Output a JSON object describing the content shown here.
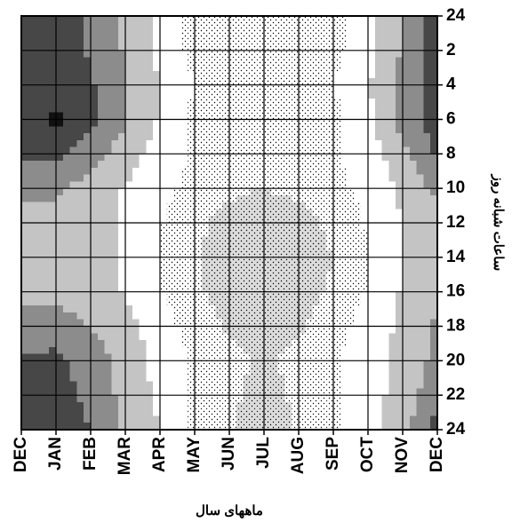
{
  "chart_data": {
    "type": "contour",
    "x_title": "ماههای سال",
    "y_title": "ساعات شبانه روز",
    "categories": [
      "DEC",
      "JAN",
      "FEB",
      "MAR",
      "APR",
      "MAY",
      "JUN",
      "JUL",
      "AUG",
      "SEP",
      "OCT",
      "NOV",
      "DEC"
    ],
    "ylim": [
      0,
      24
    ],
    "y_inverted": true,
    "yticks": [
      {
        "value": 0,
        "label": "24"
      },
      2,
      4,
      6,
      8,
      10,
      12,
      14,
      16,
      18,
      20,
      22,
      24
    ],
    "grid": true,
    "band_colors": [
      "#111111",
      "#474747",
      "#8c8c8c",
      "#c4c4c4",
      "#ffffff",
      "#ffffff",
      "#dcdcdc"
    ],
    "band_dotted": [
      false,
      false,
      false,
      false,
      false,
      true,
      true
    ],
    "z": [
      [
        1,
        1,
        1.6,
        2.6,
        3.8,
        5,
        5.3,
        5.3,
        5.3,
        5,
        3.8,
        2.4,
        1
      ],
      [
        1,
        1,
        1.6,
        2.6,
        3.8,
        4.8,
        5.2,
        5.2,
        5.2,
        4.8,
        3.8,
        2.4,
        1
      ],
      [
        1,
        0.9,
        1.4,
        2.5,
        3.5,
        4.5,
        5.1,
        5.2,
        5.1,
        4.5,
        3.6,
        2.2,
        1
      ],
      [
        1,
        0.3,
        1.2,
        2.4,
        3.6,
        4.8,
        5.2,
        5.2,
        5.2,
        4.8,
        3.7,
        2.1,
        0.9
      ],
      [
        1.2,
        1.3,
        2,
        3,
        4,
        4.6,
        4.9,
        5,
        4.9,
        4.6,
        4,
        2.8,
        1.3
      ],
      [
        2.2,
        2.2,
        3,
        3.6,
        4.2,
        4.8,
        5.3,
        5.5,
        5.3,
        4.8,
        4.2,
        3.3,
        2.2
      ],
      [
        3,
        3,
        3.2,
        3.6,
        4.4,
        5.2,
        5.9,
        6.1,
        5.9,
        5.2,
        4.4,
        3.5,
        3
      ],
      [
        3,
        3,
        3.2,
        3.6,
        4.6,
        5.4,
        6.2,
        6.4,
        6.2,
        5.5,
        4.5,
        3.4,
        3
      ],
      [
        2.8,
        2.8,
        3,
        3.6,
        4.4,
        5.3,
        6,
        6.3,
        6,
        5.3,
        4.4,
        3.4,
        2.8
      ],
      [
        2.2,
        2,
        2.5,
        3.2,
        4,
        5,
        5.6,
        5.8,
        5.6,
        5,
        4,
        3.3,
        2.3
      ],
      [
        1.4,
        1.2,
        2,
        2.8,
        3.8,
        4.6,
        5.2,
        5.7,
        5.2,
        4.6,
        3.8,
        3.3,
        2.2
      ],
      [
        1,
        1,
        1.8,
        2.8,
        3.8,
        4.6,
        5.3,
        5.9,
        5.3,
        4.6,
        3.8,
        3.2,
        1.6
      ],
      [
        1,
        1,
        1.5,
        2.6,
        3.5,
        4.8,
        5.4,
        6,
        5.4,
        4.8,
        3.8,
        2.8,
        1.2
      ]
    ]
  }
}
